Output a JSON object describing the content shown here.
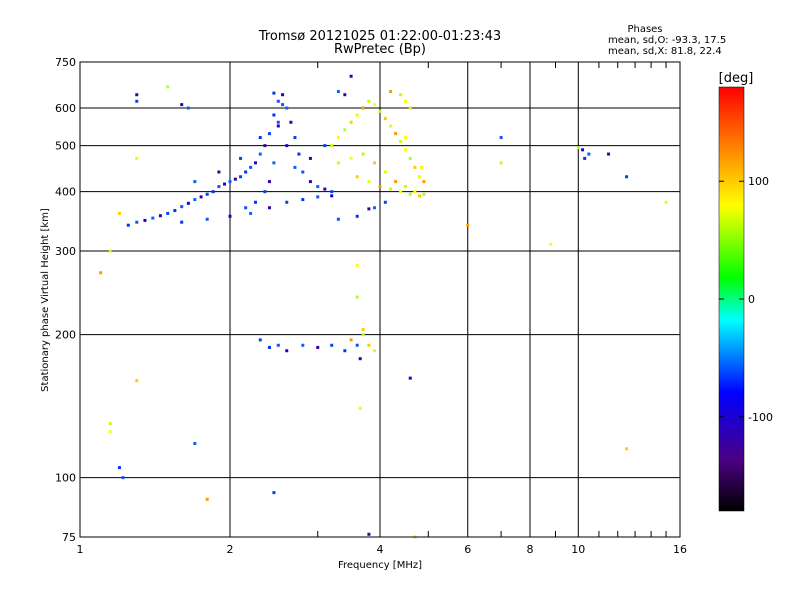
{
  "chart_data": {
    "type": "scatter",
    "title": "Tromsø 20121025 01:22:00-01:23:43",
    "subtitle": "RwPretec (Bp)",
    "stats": {
      "heading": "Phases",
      "line_o": "mean, sd,O: -93.3, 17.5",
      "line_x": "mean, sd,X:  81.8, 22.4"
    },
    "xlabel": "Frequency [MHz]",
    "ylabel": "Stationary phase Virtual Height [km]",
    "x_scale": "log",
    "y_scale": "log",
    "xlim": [
      1,
      16
    ],
    "ylim": [
      75,
      750
    ],
    "x_ticks": [
      {
        "value": 1,
        "label": "1"
      },
      {
        "value": 2,
        "label": "2"
      },
      {
        "value": 4,
        "label": "4"
      },
      {
        "value": 6,
        "label": "6"
      },
      {
        "value": 8,
        "label": "8"
      },
      {
        "value": 10,
        "label": "10"
      },
      {
        "value": 16,
        "label": "16"
      }
    ],
    "x_minor_ticks": [
      3,
      5,
      7,
      9,
      11,
      12,
      13,
      14,
      15
    ],
    "y_ticks": [
      {
        "value": 75,
        "label": "75"
      },
      {
        "value": 100,
        "label": "100"
      },
      {
        "value": 200,
        "label": "200"
      },
      {
        "value": 300,
        "label": "300"
      },
      {
        "value": 400,
        "label": "400"
      },
      {
        "value": 500,
        "label": "500"
      },
      {
        "value": 600,
        "label": "600"
      },
      {
        "value": 750,
        "label": "750"
      }
    ],
    "grid": true,
    "colorbar": {
      "label": "[deg]",
      "range": [
        -180,
        180
      ],
      "ticks": [
        {
          "value": 100,
          "label": "100"
        },
        {
          "value": 0,
          "label": "0"
        },
        {
          "value": -100,
          "label": "-100"
        }
      ]
    },
    "series": [
      {
        "mode": "O",
        "points": [
          [
            1.25,
            340
          ],
          [
            1.3,
            345
          ],
          [
            1.35,
            348
          ],
          [
            1.4,
            352
          ],
          [
            1.45,
            356
          ],
          [
            1.5,
            360
          ],
          [
            1.55,
            365
          ],
          [
            1.6,
            372
          ],
          [
            1.65,
            378
          ],
          [
            1.7,
            385
          ],
          [
            1.75,
            390
          ],
          [
            1.8,
            395
          ],
          [
            1.85,
            400
          ],
          [
            1.9,
            410
          ],
          [
            1.95,
            415
          ],
          [
            2.0,
            420
          ],
          [
            2.05,
            425
          ],
          [
            2.1,
            430
          ],
          [
            2.15,
            440
          ],
          [
            2.2,
            450
          ],
          [
            2.25,
            460
          ],
          [
            2.3,
            480
          ],
          [
            2.35,
            500
          ],
          [
            2.4,
            530
          ],
          [
            2.45,
            580
          ],
          [
            2.5,
            620
          ],
          [
            2.55,
            640
          ],
          [
            2.6,
            600
          ],
          [
            2.65,
            560
          ],
          [
            2.7,
            520
          ],
          [
            2.75,
            480
          ],
          [
            2.8,
            440
          ],
          [
            2.9,
            420
          ],
          [
            3.0,
            410
          ],
          [
            3.1,
            405
          ],
          [
            3.2,
            400
          ],
          [
            1.6,
            345
          ],
          [
            1.8,
            350
          ],
          [
            2.0,
            355
          ],
          [
            2.2,
            360
          ],
          [
            2.4,
            370
          ],
          [
            2.6,
            380
          ],
          [
            2.8,
            385
          ],
          [
            3.0,
            390
          ],
          [
            3.2,
            392
          ],
          [
            1.7,
            420
          ],
          [
            1.9,
            440
          ],
          [
            2.1,
            470
          ],
          [
            2.3,
            520
          ],
          [
            2.5,
            560
          ],
          [
            2.6,
            500
          ],
          [
            2.7,
            450
          ],
          [
            2.9,
            470
          ],
          [
            3.1,
            500
          ],
          [
            2.45,
            645
          ],
          [
            2.55,
            610
          ],
          [
            2.5,
            550
          ],
          [
            2.45,
            460
          ],
          [
            2.4,
            420
          ],
          [
            2.35,
            400
          ],
          [
            2.25,
            380
          ],
          [
            2.15,
            370
          ],
          [
            1.6,
            610
          ],
          [
            1.65,
            600
          ],
          [
            1.3,
            640
          ],
          [
            1.3,
            620
          ],
          [
            1.2,
            105
          ],
          [
            1.22,
            100
          ],
          [
            3.5,
            700
          ],
          [
            3.3,
            650
          ],
          [
            3.4,
            640
          ],
          [
            2.3,
            195
          ],
          [
            2.4,
            188
          ],
          [
            2.5,
            190
          ],
          [
            2.6,
            185
          ],
          [
            2.8,
            190
          ],
          [
            3.0,
            188
          ],
          [
            3.2,
            190
          ],
          [
            3.4,
            185
          ],
          [
            3.6,
            190
          ],
          [
            3.65,
            178
          ],
          [
            3.9,
            370
          ],
          [
            3.8,
            368
          ],
          [
            4.1,
            380
          ],
          [
            3.6,
            355
          ],
          [
            3.3,
            350
          ],
          [
            10.2,
            490
          ],
          [
            10.5,
            480
          ],
          [
            11.5,
            480
          ],
          [
            12.5,
            430
          ],
          [
            10.3,
            470
          ],
          [
            7.0,
            520
          ],
          [
            4.6,
            162
          ],
          [
            1.7,
            118
          ],
          [
            3.8,
            76
          ],
          [
            2.45,
            93
          ]
        ]
      },
      {
        "mode": "X",
        "points": [
          [
            3.2,
            500
          ],
          [
            3.3,
            520
          ],
          [
            3.4,
            540
          ],
          [
            3.5,
            560
          ],
          [
            3.6,
            580
          ],
          [
            3.7,
            600
          ],
          [
            3.8,
            620
          ],
          [
            3.9,
            610
          ],
          [
            4.0,
            590
          ],
          [
            4.1,
            570
          ],
          [
            4.2,
            550
          ],
          [
            4.3,
            530
          ],
          [
            4.4,
            510
          ],
          [
            4.5,
            490
          ],
          [
            4.6,
            470
          ],
          [
            4.7,
            450
          ],
          [
            4.8,
            430
          ],
          [
            4.9,
            420
          ],
          [
            3.3,
            460
          ],
          [
            3.5,
            470
          ],
          [
            3.7,
            480
          ],
          [
            3.9,
            460
          ],
          [
            4.1,
            440
          ],
          [
            4.3,
            420
          ],
          [
            4.5,
            410
          ],
          [
            4.7,
            400
          ],
          [
            4.9,
            395
          ],
          [
            3.6,
            430
          ],
          [
            3.8,
            420
          ],
          [
            4.0,
            410
          ],
          [
            4.2,
            405
          ],
          [
            4.4,
            400
          ],
          [
            4.6,
            395
          ],
          [
            4.8,
            392
          ],
          [
            4.85,
            450
          ],
          [
            4.2,
            650
          ],
          [
            4.4,
            640
          ],
          [
            4.5,
            620
          ],
          [
            3.7,
            200
          ],
          [
            3.8,
            190
          ],
          [
            3.9,
            185
          ],
          [
            3.5,
            195
          ],
          [
            4.6,
            600
          ],
          [
            4.5,
            520
          ],
          [
            1.5,
            665
          ],
          [
            1.2,
            360
          ],
          [
            1.3,
            470
          ],
          [
            1.1,
            270
          ],
          [
            1.15,
            300
          ],
          [
            3.6,
            280
          ],
          [
            3.6,
            240
          ],
          [
            3.7,
            205
          ],
          [
            3.65,
            140
          ],
          [
            6.0,
            340
          ],
          [
            7.0,
            460
          ],
          [
            8.8,
            310
          ],
          [
            10.0,
            495
          ],
          [
            12.5,
            115
          ],
          [
            15,
            380
          ],
          [
            1.8,
            90
          ],
          [
            1.15,
            130
          ],
          [
            1.15,
            125
          ],
          [
            4.7,
            75
          ],
          [
            1.3,
            160
          ]
        ]
      }
    ]
  }
}
